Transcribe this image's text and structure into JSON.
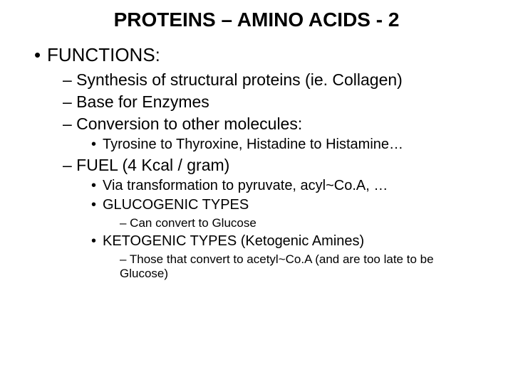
{
  "title": {
    "text": "PROTEINS – AMINO ACIDS - 2",
    "fontsize": 28
  },
  "l1_functions": {
    "text": "FUNCTIONS:",
    "fontsize": 26
  },
  "l2_synth": {
    "text": "– Synthesis of structural proteins (ie. Collagen)",
    "fontsize": 23
  },
  "l2_base": {
    "text": "– Base for Enzymes",
    "fontsize": 23
  },
  "l2_conv": {
    "text": "– Conversion to other molecules:",
    "fontsize": 23
  },
  "l3_tyro": {
    "text": "Tyrosine to Thyroxine, Histadine to Histamine…",
    "fontsize": 20
  },
  "l2_fuel": {
    "text": "– FUEL  (4 Kcal / gram)",
    "fontsize": 23
  },
  "l3_via": {
    "text": "Via transformation to pyruvate, acyl~Co.A, …",
    "fontsize": 20
  },
  "l3_gluco": {
    "text": "GLUCOGENIC TYPES",
    "fontsize": 20
  },
  "l4_gluco": {
    "text": "– Can convert to Glucose",
    "fontsize": 17
  },
  "l3_keto": {
    "text": "KETOGENIC TYPES  (Ketogenic Amines)",
    "fontsize": 20
  },
  "l4_keto": {
    "text": "– Those that convert to acetyl~Co.A (and are too late to be Glucose)",
    "fontsize": 17
  },
  "bullets": {
    "dot": "•"
  },
  "colors": {
    "text": "#000000",
    "background": "#ffffff"
  }
}
